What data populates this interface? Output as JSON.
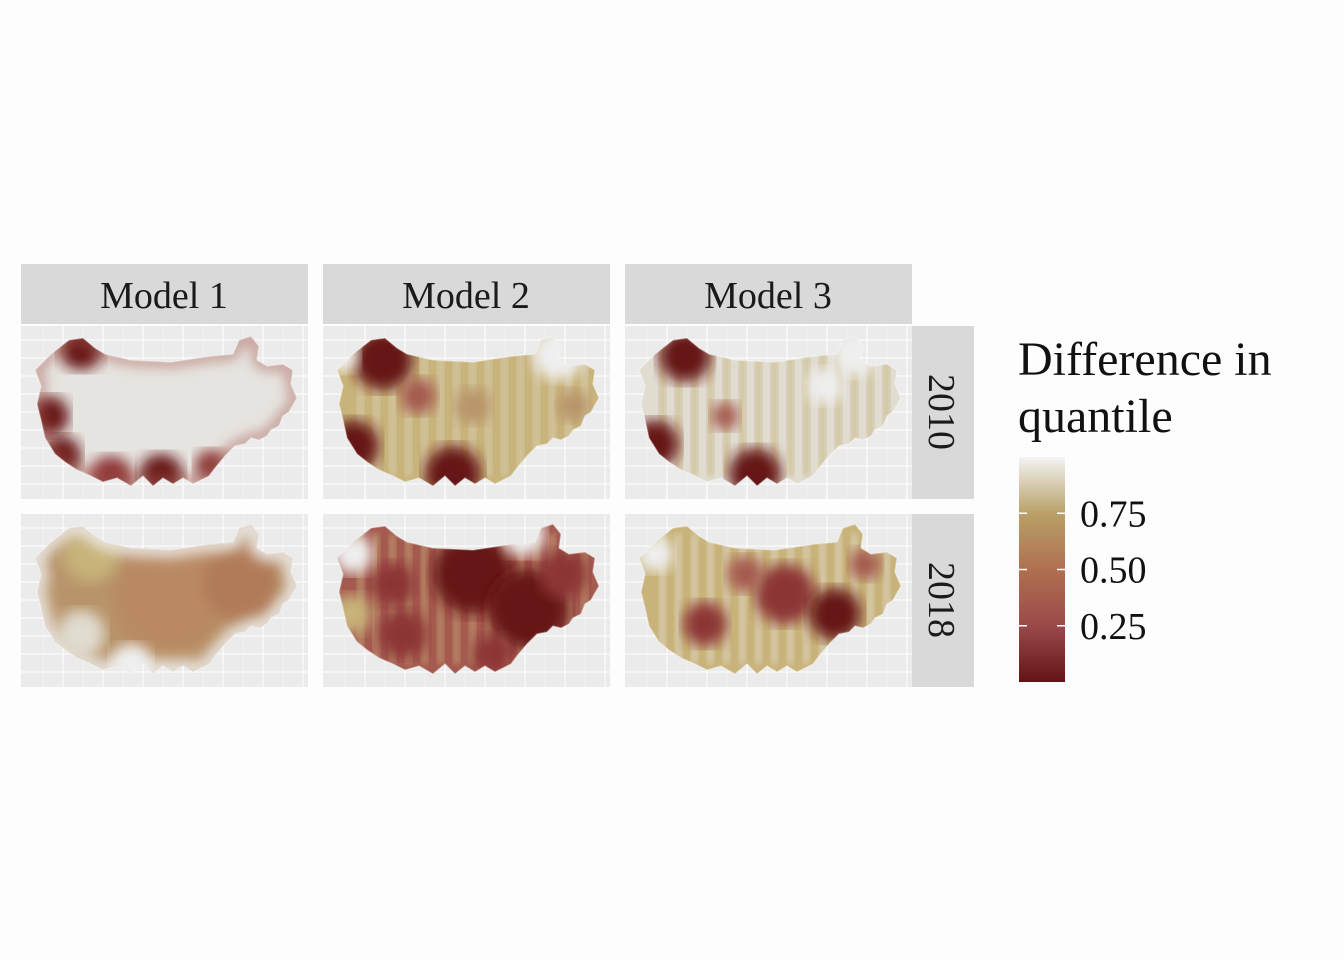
{
  "figure": {
    "columns": [
      "Model 1",
      "Model 2",
      "Model 3"
    ],
    "rows": [
      "2010",
      "2018"
    ]
  },
  "legend": {
    "title_line1": "Difference in",
    "title_line2": "quantile",
    "ticks": [
      {
        "label": "0.75",
        "value": 0.75
      },
      {
        "label": "0.50",
        "value": 0.5
      },
      {
        "label": "0.25",
        "value": 0.25
      }
    ],
    "range": [
      0,
      1
    ],
    "colors": {
      "low": "#641414",
      "mid_low": "#9a4a4a",
      "mid": "#b07050",
      "mid_high": "#b8a068",
      "high": "#f2f2f2"
    }
  },
  "colors": {
    "panel_bg": "#ebebeb",
    "grid": "#ffffff",
    "strip_bg": "#d9d9d9"
  }
}
